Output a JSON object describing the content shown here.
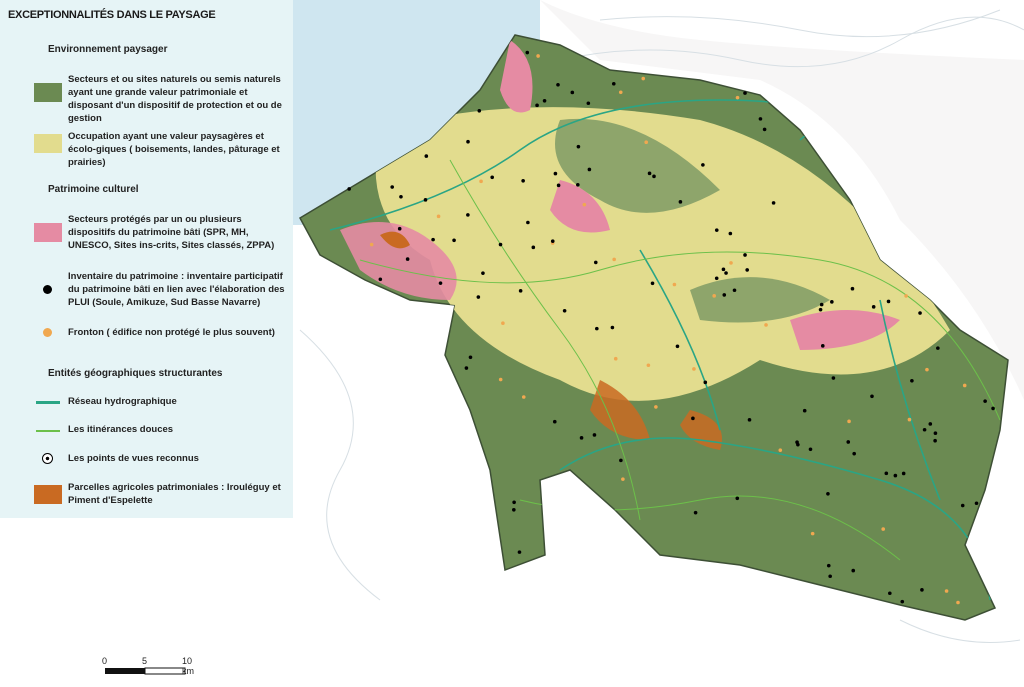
{
  "legend": {
    "title": "EXCEPTIONNALITÉS DANS LE PAYSAGE",
    "sections": [
      {
        "heading": "Environnement paysager",
        "items": [
          {
            "label": "Secteurs et ou sites naturels ou semis naturels ayant une grande valeur patrimoniale et disposant d'un dispositif de protection et ou de gestion",
            "symbol": "square",
            "color": "#6b8a52"
          },
          {
            "label": "Occupation ayant une valeur paysagères et écolo-giques ( boisements, landes, pâturage et prairies)",
            "symbol": "square",
            "color": "#e2dc8e"
          }
        ]
      },
      {
        "heading": "Patrimoine culturel",
        "items": [
          {
            "label": "Secteurs protégés par un ou plusieurs dispositifs du patrimoine bâti (SPR, MH, UNESCO, Sites ins-crits, Sites classés, ZPPA)",
            "symbol": "square",
            "color": "#e58ba3"
          },
          {
            "label": "Inventaire du patrimoine : inventaire participatif du patrimoine bâti en lien avec l'élaboration des PLUI (Soule, Amikuze, Sud Basse Navarre)",
            "symbol": "dot",
            "color": "#000000"
          },
          {
            "label": "Fronton ( édifice non protégé le plus souvent)",
            "symbol": "dot",
            "color": "#f0a850"
          }
        ]
      },
      {
        "heading": "Entités géographiques structurantes",
        "items": [
          {
            "label": "Réseau hydrographique",
            "symbol": "line",
            "color": "#2aa585"
          },
          {
            "label": "Les itinérances douces",
            "symbol": "line",
            "color": "#6cc04a"
          },
          {
            "label": "Les points de vues reconnus",
            "symbol": "target-dot",
            "color": "#000000"
          },
          {
            "label": "Parcelles agricoles patrimoniales : Irouléguy et Piment d'Espelette",
            "symbol": "square",
            "color": "#c96a22"
          }
        ]
      }
    ]
  },
  "scale_bar": {
    "ticks": [
      "0",
      "5",
      "10 km"
    ]
  },
  "colors": {
    "sea": "#cfe6f0",
    "natural": "#6b8a52",
    "landscape": "#e2dc8e",
    "protected": "#e58ba3",
    "hydro": "#2aa585",
    "trail": "#6cc04a",
    "agri": "#c96a22"
  }
}
